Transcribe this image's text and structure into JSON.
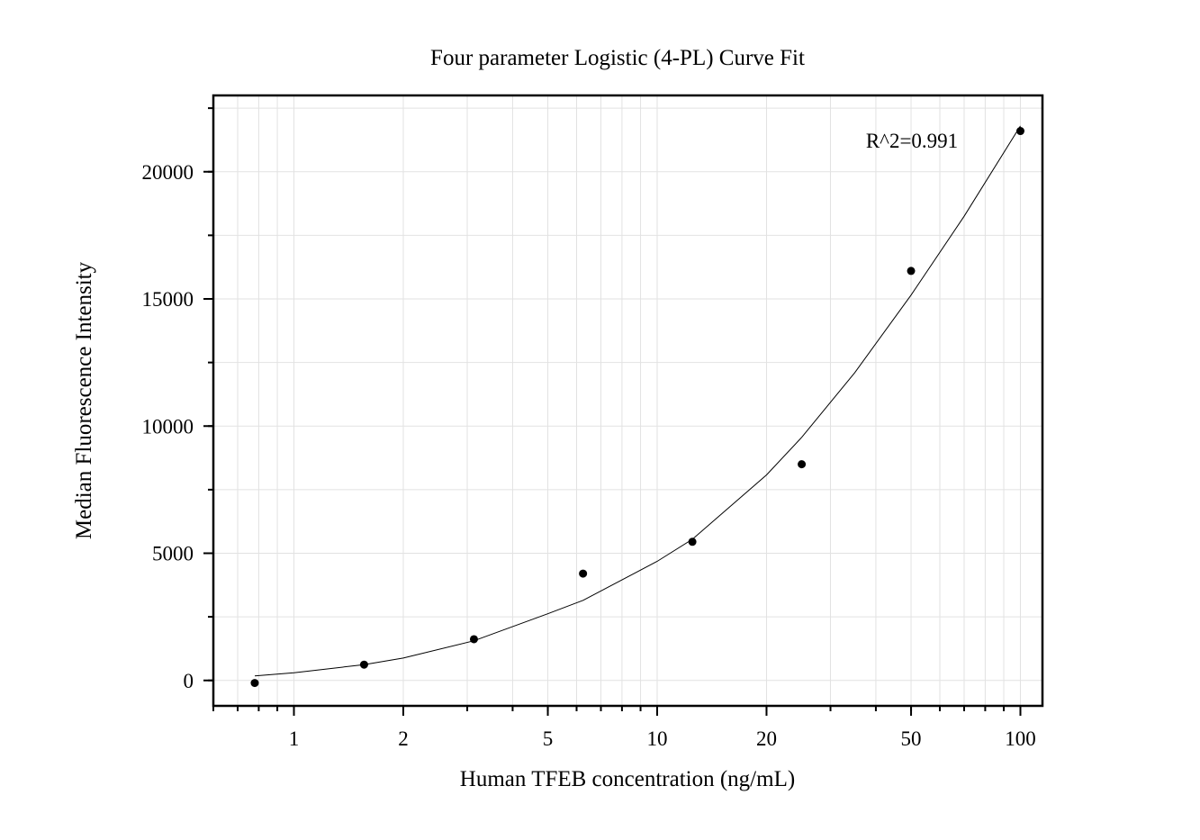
{
  "chart_data": {
    "type": "scatter",
    "title": "Four parameter Logistic (4-PL) Curve Fit",
    "xlabel": "Human TFEB concentration (ng/mL)",
    "ylabel": "Median Fluorescence Intensity",
    "x_scale": "log",
    "xlim": [
      0.6,
      115
    ],
    "ylim": [
      -1000,
      23000
    ],
    "x_ticks": [
      1,
      2,
      5,
      10,
      20,
      50,
      100
    ],
    "x_tick_labels": [
      "1",
      "2",
      "5",
      "10",
      "20",
      "50",
      "100"
    ],
    "y_ticks": [
      0,
      5000,
      10000,
      15000,
      20000
    ],
    "y_tick_labels": [
      "0",
      "5000",
      "10000",
      "15000",
      "20000"
    ],
    "grid": true,
    "annotation": "R^2=0.991",
    "series": [
      {
        "kind": "points",
        "x": [
          0.78,
          1.56,
          3.13,
          6.25,
          12.5,
          25,
          50,
          100
        ],
        "y": [
          -100,
          620,
          1620,
          4200,
          5450,
          8500,
          16100,
          21600
        ]
      },
      {
        "kind": "fit-curve",
        "x": [
          0.78,
          1,
          1.56,
          2,
          3.13,
          5,
          6.25,
          10,
          12.5,
          20,
          25,
          35,
          50,
          70,
          100
        ],
        "y": [
          180,
          300,
          620,
          880,
          1560,
          2620,
          3150,
          4680,
          5550,
          8080,
          9560,
          12100,
          15150,
          18250,
          21800
        ]
      }
    ]
  }
}
